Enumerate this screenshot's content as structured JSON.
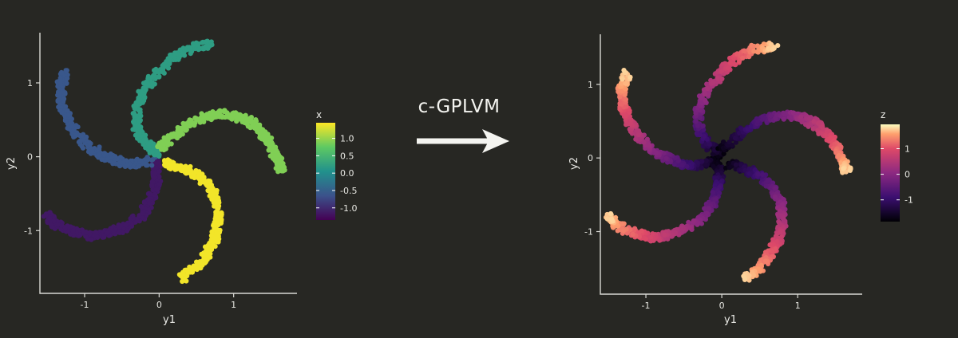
{
  "transition": {
    "label": "c-GPLVM"
  },
  "chart_data": [
    {
      "type": "scatter",
      "title": "",
      "xlabel": "y1",
      "ylabel": "y2",
      "xlim": [
        -1.6,
        1.85
      ],
      "ylim": [
        -1.85,
        1.68
      ],
      "xticks": [
        -1,
        0,
        1
      ],
      "yticks": [
        -1,
        0,
        1
      ],
      "grid": false,
      "color_variable": "x",
      "colormap": "viridis",
      "color_range": [
        -1.35,
        1.45
      ],
      "colorbar_ticks": [
        1.0,
        0.5,
        0.0,
        -0.5,
        -1.0
      ],
      "colorbar_tick_labels": [
        "1.0",
        "0.5",
        "0.0",
        "-0.5",
        "-1.0"
      ],
      "colorbar_title": "x",
      "legend_position": "right",
      "series": [
        {
          "color_value": -1.15,
          "points": [
            [
              -0.05,
              -0.05
            ],
            [
              -0.03,
              -0.25
            ],
            [
              -0.05,
              -0.4
            ],
            [
              -0.12,
              -0.6
            ],
            [
              -0.25,
              -0.8
            ],
            [
              -0.45,
              -0.95
            ],
            [
              -0.7,
              -1.05
            ],
            [
              -0.95,
              -1.08
            ],
            [
              -1.2,
              -1.0
            ],
            [
              -1.4,
              -0.9
            ],
            [
              -1.5,
              -0.8
            ]
          ]
        },
        {
          "color_value": -0.6,
          "points": [
            [
              -0.1,
              -0.05
            ],
            [
              -0.3,
              -0.1
            ],
            [
              -0.5,
              -0.08
            ],
            [
              -0.72,
              0.0
            ],
            [
              -0.92,
              0.12
            ],
            [
              -1.1,
              0.3
            ],
            [
              -1.22,
              0.5
            ],
            [
              -1.3,
              0.72
            ],
            [
              -1.32,
              0.95
            ],
            [
              -1.25,
              1.15
            ]
          ]
        },
        {
          "color_value": 0.2,
          "points": [
            [
              0.0,
              0.05
            ],
            [
              -0.2,
              0.2
            ],
            [
              -0.3,
              0.4
            ],
            [
              -0.3,
              0.65
            ],
            [
              -0.2,
              0.9
            ],
            [
              -0.02,
              1.15
            ],
            [
              0.2,
              1.35
            ],
            [
              0.45,
              1.48
            ],
            [
              0.7,
              1.52
            ]
          ]
        },
        {
          "color_value": 0.9,
          "points": [
            [
              0.0,
              0.1
            ],
            [
              0.2,
              0.3
            ],
            [
              0.4,
              0.45
            ],
            [
              0.62,
              0.55
            ],
            [
              0.85,
              0.58
            ],
            [
              1.05,
              0.55
            ],
            [
              1.25,
              0.45
            ],
            [
              1.4,
              0.3
            ],
            [
              1.52,
              0.12
            ],
            [
              1.6,
              -0.05
            ],
            [
              1.65,
              -0.18
            ]
          ]
        },
        {
          "color_value": 1.4,
          "points": [
            [
              0.08,
              -0.08
            ],
            [
              0.3,
              -0.15
            ],
            [
              0.52,
              -0.25
            ],
            [
              0.68,
              -0.42
            ],
            [
              0.78,
              -0.62
            ],
            [
              0.8,
              -0.88
            ],
            [
              0.75,
              -1.1
            ],
            [
              0.65,
              -1.3
            ],
            [
              0.5,
              -1.5
            ],
            [
              0.3,
              -1.65
            ]
          ]
        }
      ]
    },
    {
      "type": "scatter",
      "title": "",
      "xlabel": "y1",
      "ylabel": "y2",
      "xlim": [
        -1.6,
        1.85
      ],
      "ylim": [
        -1.85,
        1.68
      ],
      "xticks": [
        -1,
        0,
        1
      ],
      "yticks": [
        -1,
        0,
        1
      ],
      "grid": false,
      "color_variable": "z",
      "colormap": "magma",
      "color_range": [
        -1.85,
        1.95
      ],
      "colorbar_ticks": [
        1,
        0,
        -1
      ],
      "colorbar_tick_labels": [
        "1",
        "0",
        "-1"
      ],
      "colorbar_title": "z",
      "legend_position": "right",
      "series": [
        {
          "color_start": -1.8,
          "color_end": 1.8,
          "points": [
            [
              -0.05,
              -0.05
            ],
            [
              -0.03,
              -0.25
            ],
            [
              -0.05,
              -0.4
            ],
            [
              -0.12,
              -0.6
            ],
            [
              -0.25,
              -0.8
            ],
            [
              -0.45,
              -0.95
            ],
            [
              -0.7,
              -1.05
            ],
            [
              -0.95,
              -1.08
            ],
            [
              -1.2,
              -1.0
            ],
            [
              -1.4,
              -0.9
            ],
            [
              -1.5,
              -0.8
            ]
          ]
        },
        {
          "color_start": -1.8,
          "color_end": 1.8,
          "points": [
            [
              -0.1,
              -0.05
            ],
            [
              -0.3,
              -0.1
            ],
            [
              -0.5,
              -0.08
            ],
            [
              -0.72,
              0.0
            ],
            [
              -0.92,
              0.12
            ],
            [
              -1.1,
              0.3
            ],
            [
              -1.22,
              0.5
            ],
            [
              -1.3,
              0.72
            ],
            [
              -1.32,
              0.95
            ],
            [
              -1.25,
              1.15
            ]
          ]
        },
        {
          "color_start": -1.8,
          "color_end": 1.8,
          "points": [
            [
              0.0,
              0.05
            ],
            [
              -0.2,
              0.2
            ],
            [
              -0.3,
              0.4
            ],
            [
              -0.3,
              0.65
            ],
            [
              -0.2,
              0.9
            ],
            [
              -0.02,
              1.15
            ],
            [
              0.2,
              1.35
            ],
            [
              0.45,
              1.48
            ],
            [
              0.7,
              1.52
            ]
          ]
        },
        {
          "color_start": -1.8,
          "color_end": 1.8,
          "points": [
            [
              0.0,
              0.1
            ],
            [
              0.2,
              0.3
            ],
            [
              0.4,
              0.45
            ],
            [
              0.62,
              0.55
            ],
            [
              0.85,
              0.58
            ],
            [
              1.05,
              0.55
            ],
            [
              1.25,
              0.45
            ],
            [
              1.4,
              0.3
            ],
            [
              1.52,
              0.12
            ],
            [
              1.6,
              -0.05
            ],
            [
              1.65,
              -0.18
            ]
          ]
        },
        {
          "color_start": -1.8,
          "color_end": 1.8,
          "points": [
            [
              0.08,
              -0.08
            ],
            [
              0.3,
              -0.15
            ],
            [
              0.52,
              -0.25
            ],
            [
              0.68,
              -0.42
            ],
            [
              0.78,
              -0.62
            ],
            [
              0.8,
              -0.88
            ],
            [
              0.75,
              -1.1
            ],
            [
              0.65,
              -1.3
            ],
            [
              0.5,
              -1.5
            ],
            [
              0.3,
              -1.65
            ]
          ]
        }
      ]
    }
  ]
}
